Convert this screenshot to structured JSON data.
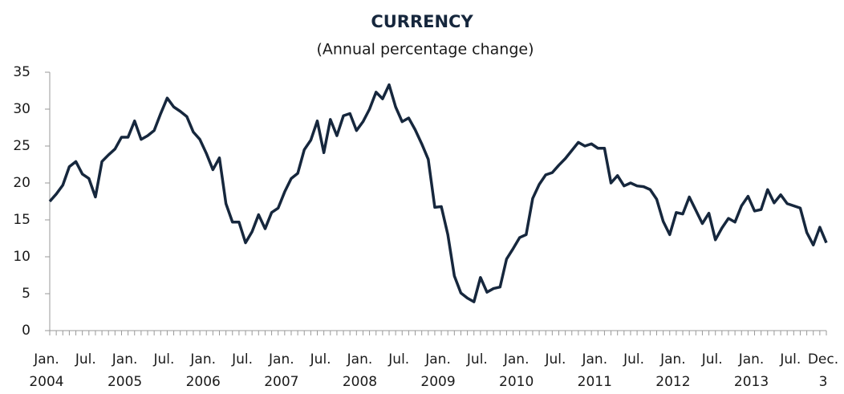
{
  "chart_data": {
    "type": "line",
    "title": "CURRENCY",
    "subtitle": "(Annual percentage change)",
    "categories": [
      "Jan. 2004",
      null,
      null,
      null,
      null,
      null,
      "Jul.",
      null,
      null,
      null,
      null,
      null,
      "Jan. 2005",
      null,
      null,
      null,
      null,
      null,
      "Jul.",
      null,
      null,
      null,
      null,
      null,
      "Jan. 2006",
      null,
      null,
      null,
      null,
      null,
      "Jul.",
      null,
      null,
      null,
      null,
      null,
      "Jan. 2007",
      null,
      null,
      null,
      null,
      null,
      "Jul.",
      null,
      null,
      null,
      null,
      null,
      "Jan. 2008",
      null,
      null,
      null,
      null,
      null,
      "Jul.",
      null,
      null,
      null,
      null,
      null,
      "Jan. 2009",
      null,
      null,
      null,
      null,
      null,
      "Jul.",
      null,
      null,
      null,
      null,
      null,
      "Jan. 2010",
      null,
      null,
      null,
      null,
      null,
      "Jul.",
      null,
      null,
      null,
      null,
      null,
      "Jan. 2011",
      null,
      null,
      null,
      null,
      null,
      "Jul.",
      null,
      null,
      null,
      null,
      null,
      "Jan. 2012",
      null,
      null,
      null,
      null,
      null,
      "Jul.",
      null,
      null,
      null,
      null,
      null,
      "Jan. 2013",
      null,
      null,
      null,
      null,
      null,
      "Jul.",
      null,
      null,
      null,
      null,
      "Dec. 3"
    ],
    "values": [
      17.5,
      18.5,
      19.7,
      22.2,
      22.9,
      21.2,
      20.6,
      18.1,
      22.9,
      23.8,
      24.6,
      26.2,
      26.2,
      28.4,
      25.9,
      26.4,
      27.1,
      29.4,
      31.5,
      30.3,
      29.7,
      29.0,
      26.9,
      25.9,
      24.0,
      21.8,
      23.4,
      17.2,
      14.7,
      14.7,
      11.9,
      13.4,
      15.7,
      13.8,
      16.0,
      16.6,
      18.8,
      20.6,
      21.3,
      24.5,
      25.8,
      28.4,
      24.1,
      28.6,
      26.4,
      29.1,
      29.4,
      27.1,
      28.3,
      30.0,
      32.3,
      31.4,
      33.3,
      30.3,
      28.3,
      28.8,
      27.2,
      25.3,
      23.2,
      16.7,
      16.8,
      13.0,
      7.4,
      5.1,
      4.4,
      3.9,
      7.2,
      5.2,
      5.7,
      5.9,
      9.7,
      11.1,
      12.6,
      13.0,
      17.9,
      19.8,
      21.1,
      21.4,
      22.4,
      23.3,
      24.4,
      25.5,
      25.0,
      25.3,
      24.7,
      24.7,
      20.0,
      21.0,
      19.6,
      20.0,
      19.6,
      19.5,
      19.1,
      17.8,
      14.8,
      13.0,
      16.0,
      15.8,
      18.1,
      16.3,
      14.5,
      15.9,
      12.3,
      13.9,
      15.2,
      14.7,
      16.9,
      18.2,
      16.2,
      16.4,
      19.1,
      17.3,
      18.4,
      17.2,
      16.9,
      16.6,
      13.3,
      11.6,
      14.0,
      11.9
    ],
    "color": "#16273d",
    "ylim": [
      0,
      35
    ],
    "yticks": [
      0,
      5,
      10,
      15,
      20,
      25,
      30,
      35
    ],
    "grid": false
  }
}
